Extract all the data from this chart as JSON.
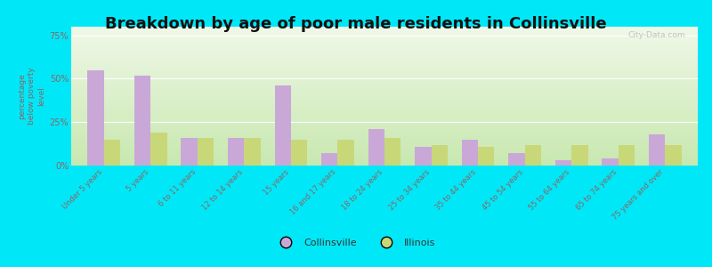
{
  "title": "Breakdown by age of poor male residents in Collinsville",
  "ylabel": "percentage\nbelow poverty\nlevel",
  "categories": [
    "Under 5 years",
    "5 years",
    "6 to 11 years",
    "12 to 14 years",
    "15 years",
    "16 and 17 years",
    "18 to 24 years",
    "25 to 34 years",
    "35 to 44 years",
    "45 to 54 years",
    "55 to 64 years",
    "65 to 74 years",
    "75 years and over"
  ],
  "collinsville": [
    55,
    52,
    16,
    16,
    46,
    7,
    21,
    11,
    15,
    7,
    3,
    4,
    18
  ],
  "illinois": [
    15,
    19,
    16,
    16,
    15,
    15,
    16,
    12,
    11,
    12,
    12,
    12,
    12
  ],
  "collinsville_color": "#c9a8d8",
  "illinois_color": "#c8d878",
  "bg_top": "#f0f8e8",
  "bg_bottom": "#c8e8b0",
  "outer_bg": "#00e8f8",
  "ylim": [
    0,
    80
  ],
  "yticks": [
    0,
    25,
    50,
    75
  ],
  "ytick_labels": [
    "0%",
    "25%",
    "50%",
    "75%"
  ],
  "title_fontsize": 13,
  "legend_labels": [
    "Collinsville",
    "Illinois"
  ],
  "tick_color": "#886666",
  "watermark": "City-Data.com"
}
